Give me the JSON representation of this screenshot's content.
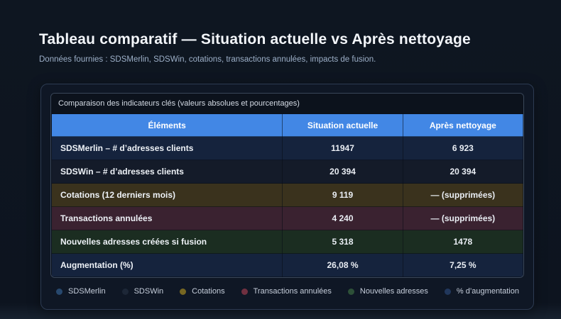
{
  "page": {
    "title": "Tableau comparatif — Situation actuelle vs Après nettoyage",
    "subtitle": "Données fournies : SDSMerlin, SDSWin, cotations, transactions annulées, impacts de fusion."
  },
  "colors": {
    "header_bg": "#4287e5",
    "page_bg": "#0d141f",
    "card_bg": "#0f1725",
    "card_border": "#2d3b52"
  },
  "chart_data": {
    "type": "table",
    "title": "Comparaison des indicateurs clés (valeurs absolues et pourcentages)",
    "columns": [
      "Éléments",
      "Situation actuelle",
      "Après nettoyage"
    ],
    "rows": [
      {
        "label": "SDSMerlin – # d’adresses clients",
        "current": "11947",
        "after": "6 923",
        "bg": "#15233d"
      },
      {
        "label": "SDSWin – # d’adresses clients",
        "current": "20 394",
        "after": "20 394",
        "bg": "#141b29"
      },
      {
        "label": "Cotations (12 derniers mois)",
        "current": "9 119",
        "after": "— (supprimées)",
        "bg": "#3a321d"
      },
      {
        "label": "Transactions annulées",
        "current": "4 240",
        "after": "— (supprimées)",
        "bg": "#3a2230"
      },
      {
        "label": "Nouvelles adresses créées si fusion",
        "current": "5 318",
        "after": "1478",
        "bg": "#1b2d21"
      },
      {
        "label": "Augmentation (%)",
        "current": "26,08 %",
        "after": "7,25 %",
        "bg": "#15233d"
      }
    ]
  },
  "legend": {
    "items": [
      {
        "label": "SDSMerlin",
        "color": "#27486e"
      },
      {
        "label": "SDSWin",
        "color": "#1d2737"
      },
      {
        "label": "Cotations",
        "color": "#776722"
      },
      {
        "label": "Transactions annulées",
        "color": "#703040"
      },
      {
        "label": "Nouvelles adresses",
        "color": "#2d5038"
      },
      {
        "label": "% d’augmentation",
        "color": "#21375c"
      }
    ]
  }
}
